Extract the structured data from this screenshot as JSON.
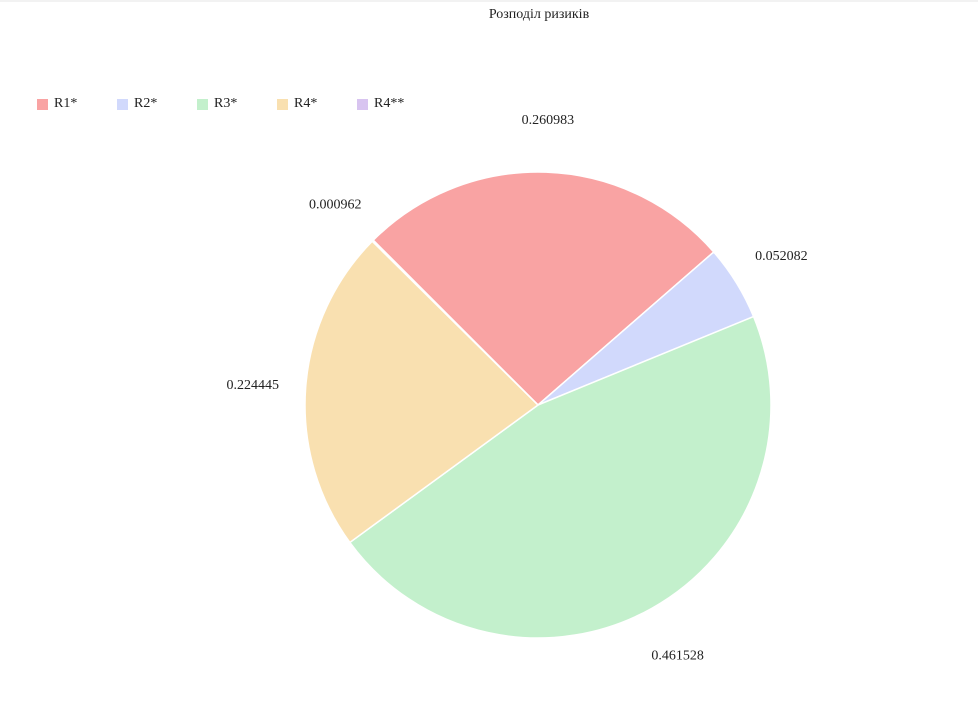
{
  "chart_data": {
    "type": "pie",
    "title": "Розподіл ризиків",
    "legend_position": "top-left",
    "categories": [
      "R1*",
      "R2*",
      "R3*",
      "R4*",
      "R4**"
    ],
    "values": [
      0.260983,
      0.052082,
      0.461528,
      0.224445,
      0.000962
    ],
    "value_labels": [
      "0.260983",
      "0.052082",
      "0.461528",
      "0.224445",
      "0.000962"
    ],
    "colors": [
      "#f9a3a3",
      "#d1d9fc",
      "#c3f0cc",
      "#f9e0b0",
      "#d8c4f0"
    ],
    "start_angle_deg": -135,
    "direction": "clockwise"
  }
}
